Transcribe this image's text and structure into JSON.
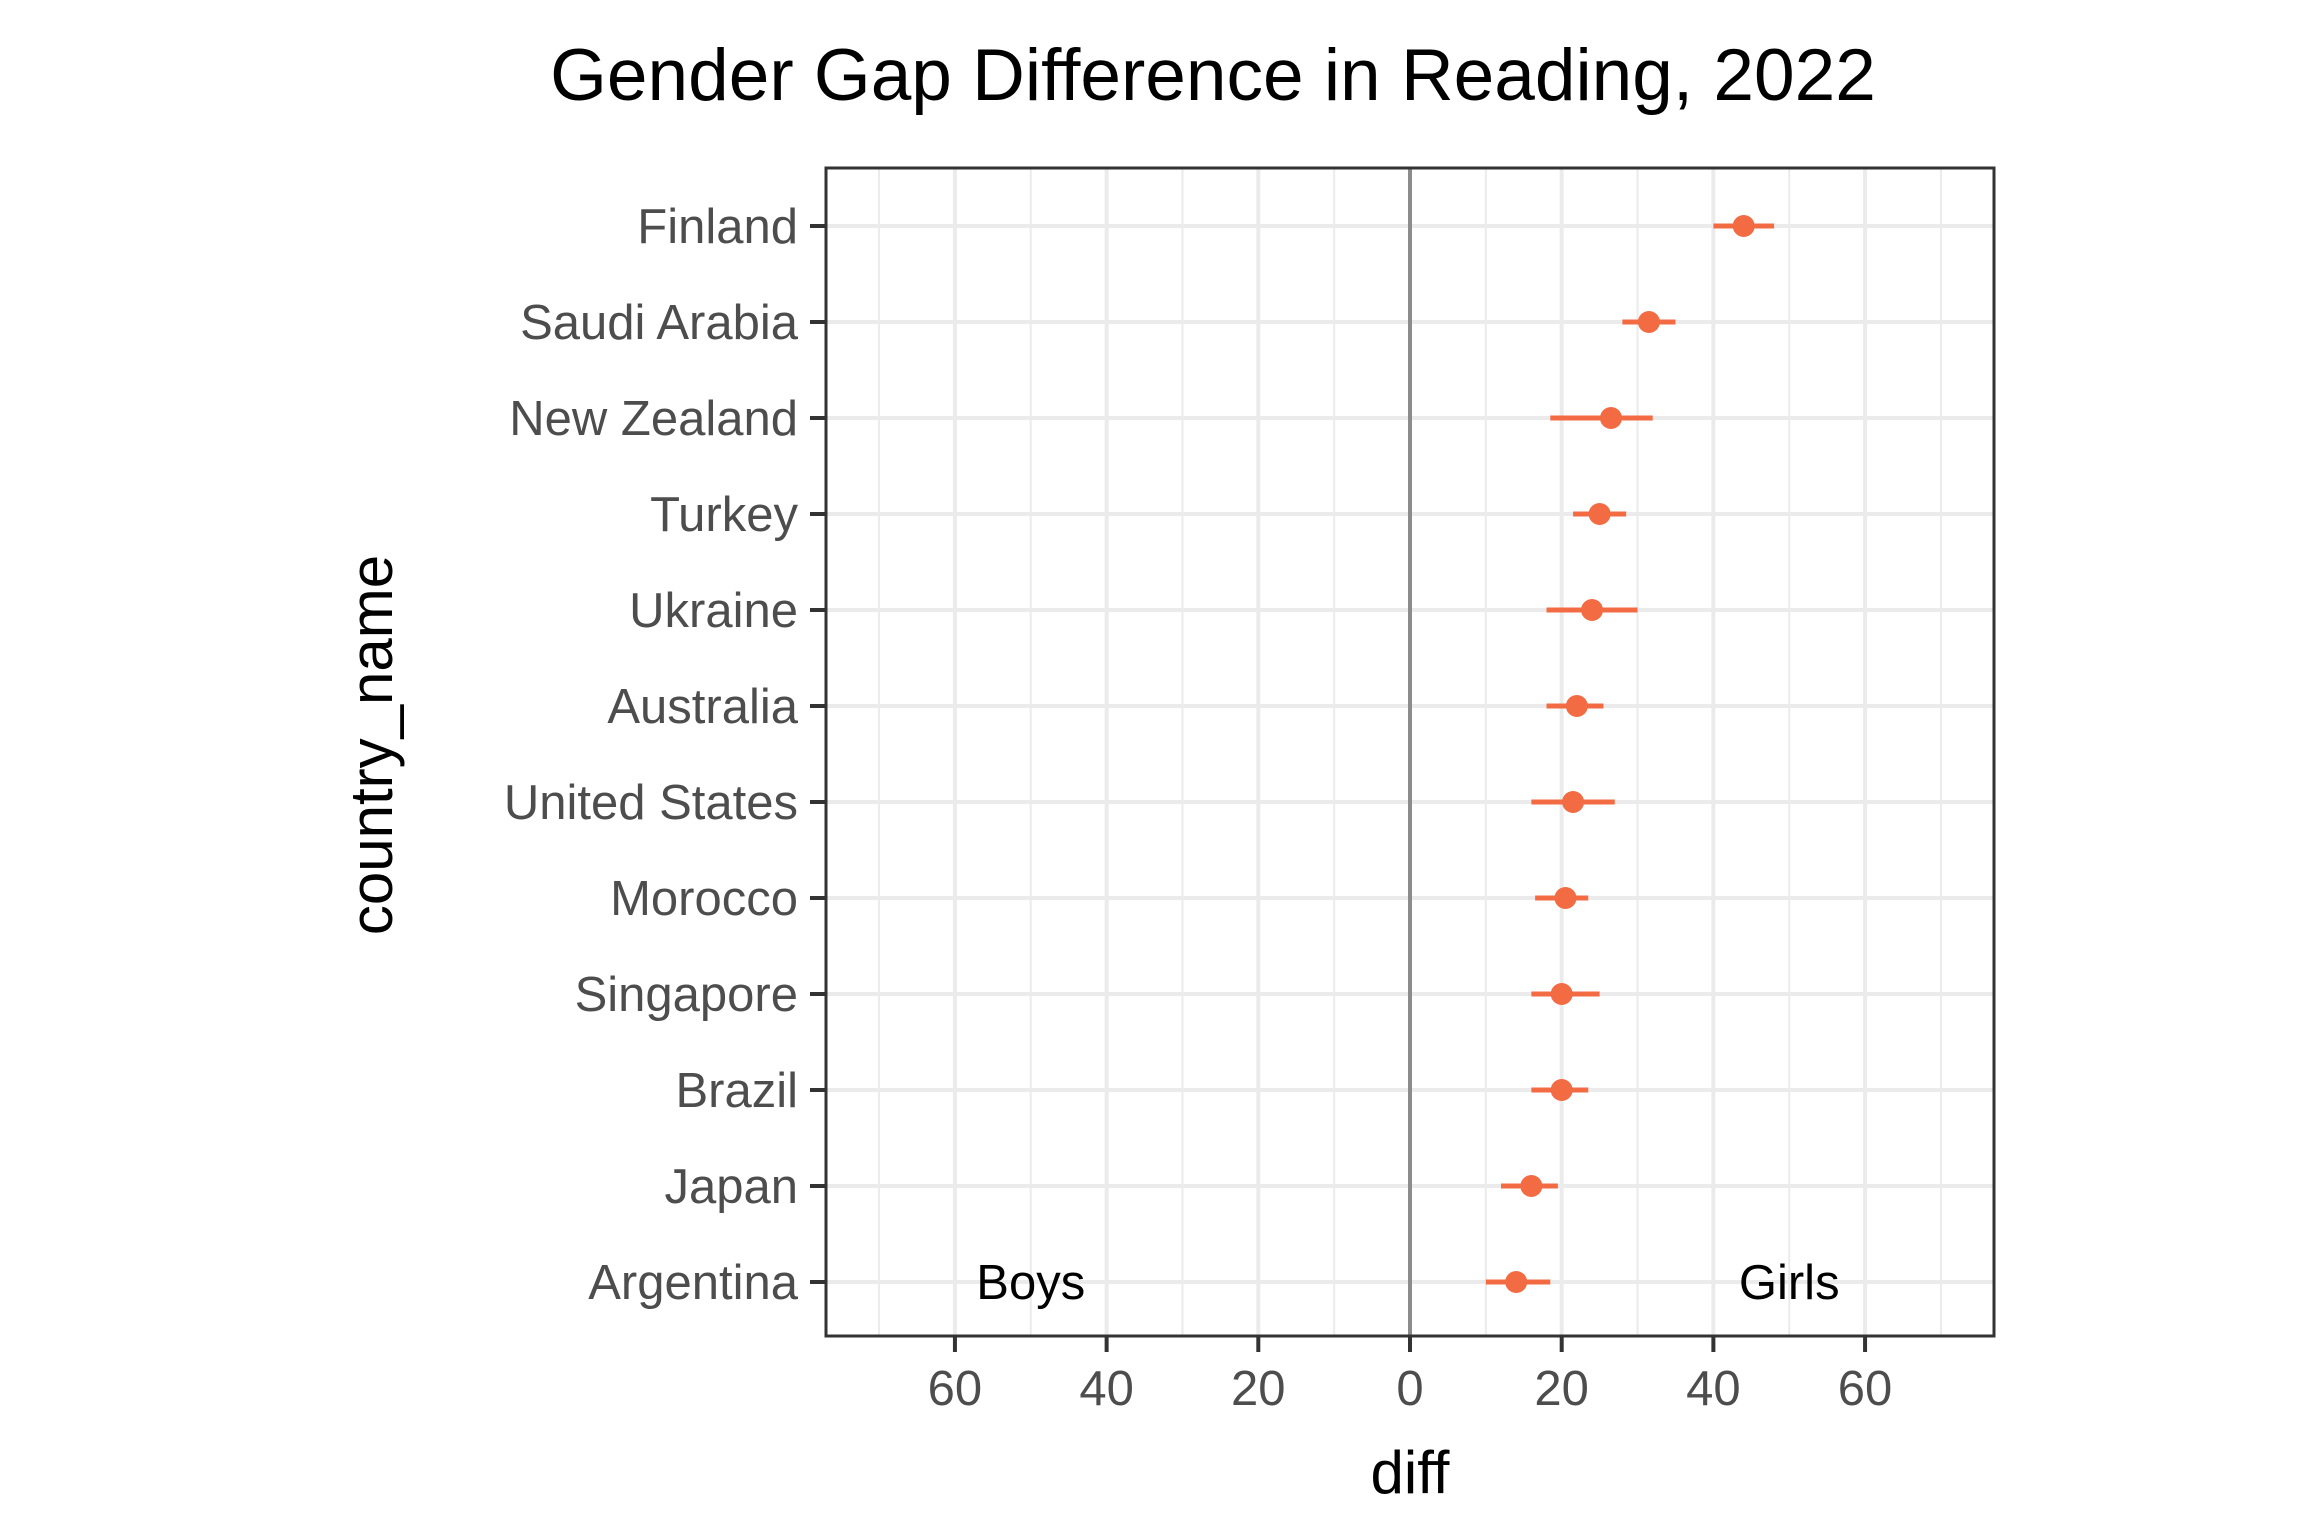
{
  "chart_data": {
    "type": "scatter",
    "title": "Gender Gap Difference in Reading, 2022",
    "xlabel": "diff",
    "ylabel": "country_name",
    "xlim": [
      -77,
      77
    ],
    "x_ticks": [
      -60,
      -40,
      -20,
      0,
      20,
      40,
      60
    ],
    "x_tick_labels": [
      "60",
      "40",
      "20",
      "0",
      "20",
      "40",
      "60"
    ],
    "grid": true,
    "reference_line_x": 0,
    "categories": [
      "Finland",
      "Saudi Arabia",
      "New Zealand",
      "Turkey",
      "Ukraine",
      "Australia",
      "United States",
      "Morocco",
      "Singapore",
      "Brazil",
      "Japan",
      "Argentina"
    ],
    "points": [
      {
        "country": "Finland",
        "diff": 44,
        "low": 40,
        "high": 48
      },
      {
        "country": "Saudi Arabia",
        "diff": 31.5,
        "low": 28,
        "high": 35
      },
      {
        "country": "New Zealand",
        "diff": 26.5,
        "low": 18.5,
        "high": 32
      },
      {
        "country": "Turkey",
        "diff": 25,
        "low": 21.5,
        "high": 28.5
      },
      {
        "country": "Ukraine",
        "diff": 24,
        "low": 18,
        "high": 30
      },
      {
        "country": "Australia",
        "diff": 22,
        "low": 18,
        "high": 25.5
      },
      {
        "country": "United States",
        "diff": 21.5,
        "low": 16,
        "high": 27
      },
      {
        "country": "Morocco",
        "diff": 20.5,
        "low": 16.5,
        "high": 23.5
      },
      {
        "country": "Singapore",
        "diff": 20,
        "low": 16,
        "high": 25
      },
      {
        "country": "Brazil",
        "diff": 20,
        "low": 16,
        "high": 23.5
      },
      {
        "country": "Japan",
        "diff": 16,
        "low": 12,
        "high": 19.5
      },
      {
        "country": "Argentina",
        "diff": 14,
        "low": 10,
        "high": 18.5
      }
    ],
    "annotations": [
      {
        "text": "Boys",
        "x": -50
      },
      {
        "text": "Girls",
        "x": 50
      }
    ],
    "colors": {
      "point": "#f26b43",
      "zero_line": "#8c8c8c",
      "grid": "#ebebeb",
      "panel_border": "#333333"
    }
  }
}
